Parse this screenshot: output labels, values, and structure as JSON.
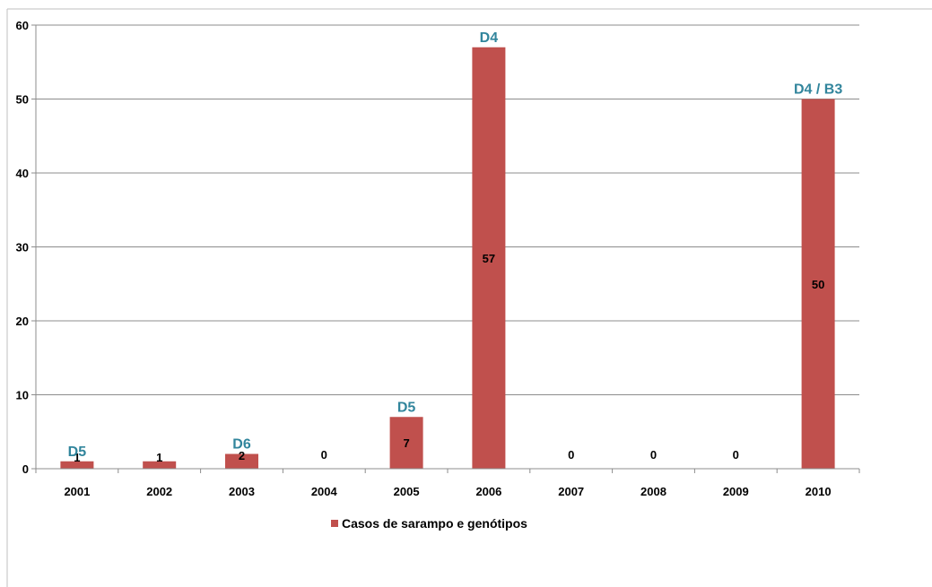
{
  "chart_data": {
    "type": "bar",
    "categories": [
      "2001",
      "2002",
      "2003",
      "2004",
      "2005",
      "2006",
      "2007",
      "2008",
      "2009",
      "2010"
    ],
    "series": [
      {
        "name": "Casos de sarampo e genótipos",
        "values": [
          1,
          1,
          2,
          0,
          7,
          57,
          0,
          0,
          0,
          50
        ],
        "color": "#c0504d"
      }
    ],
    "data_labels": [
      "1",
      "1",
      "2",
      "0",
      "7",
      "57",
      "0",
      "0",
      "0",
      "50"
    ],
    "genotype_labels": [
      "D5",
      "",
      "D6",
      "",
      "D5",
      "D4",
      "",
      "",
      "",
      "D4 / B3"
    ],
    "genotype_color": "#31859c",
    "yticks": [
      0,
      10,
      20,
      30,
      40,
      50,
      60
    ],
    "ylim": [
      0,
      60
    ],
    "grid": true,
    "legend": "bottom",
    "title": "",
    "xlabel": "",
    "ylabel": ""
  }
}
